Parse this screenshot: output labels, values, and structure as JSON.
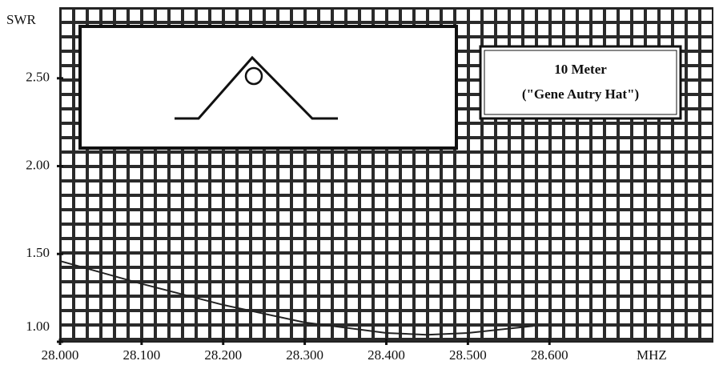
{
  "chart_data": {
    "type": "line",
    "title": "10 Meter",
    "subtitle": "(\"Gene Autry Hat\")",
    "y_label": "SWR",
    "x_label": "MHZ",
    "x": [
      28.0,
      28.1,
      28.2,
      28.3,
      28.4,
      28.45,
      28.5,
      28.58
    ],
    "series": [
      {
        "color": "#222222",
        "values": [
          1.46,
          1.33,
          1.21,
          1.11,
          1.05,
          1.04,
          1.05,
          1.09
        ]
      }
    ],
    "xlim": [
      28.0,
      28.8
    ],
    "ylim": [
      1.0,
      2.9
    ],
    "xticks": [
      {
        "value": 28.0,
        "label": "28.000"
      },
      {
        "value": 28.1,
        "label": "28.100"
      },
      {
        "value": 28.2,
        "label": "28.200"
      },
      {
        "value": 28.3,
        "label": "28.300"
      },
      {
        "value": 28.4,
        "label": "28.400"
      },
      {
        "value": 28.5,
        "label": "28.500"
      },
      {
        "value": 28.6,
        "label": "28.600"
      }
    ],
    "yticks": [
      {
        "value": 1.0,
        "label": "1.00"
      },
      {
        "value": 1.5,
        "label": "1.50"
      },
      {
        "value": 2.0,
        "label": "2.00"
      },
      {
        "value": 2.5,
        "label": "2.50"
      }
    ],
    "grid": true
  }
}
